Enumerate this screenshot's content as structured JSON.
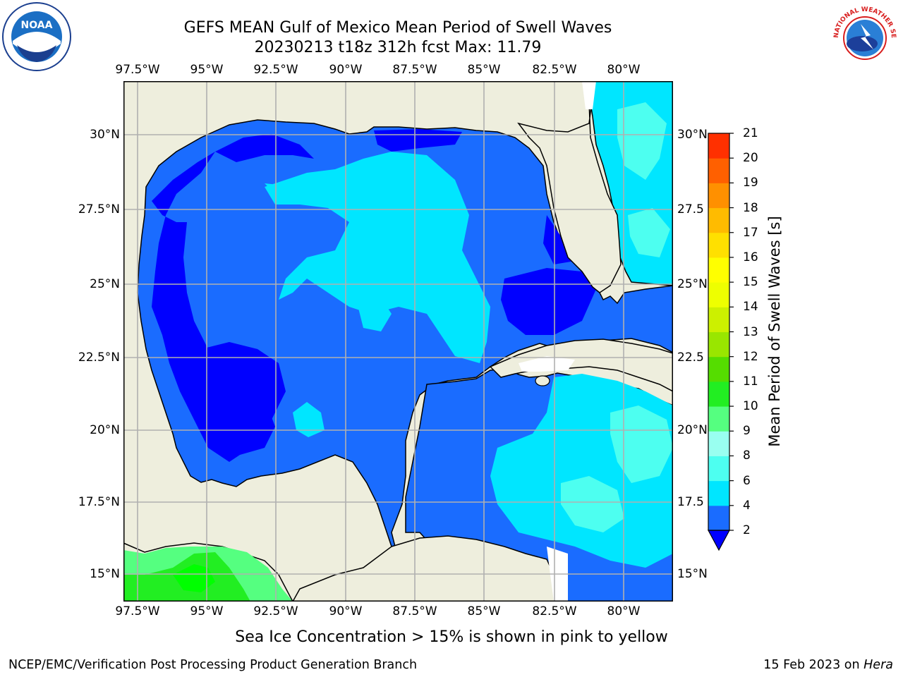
{
  "title": {
    "line1": "GEFS MEAN Gulf of Mexico Mean Period of Swell Waves",
    "line2": "20230213 t18z 312h fcst   Max: 11.79"
  },
  "logos": {
    "left": {
      "name": "noaa-logo",
      "text": "NOAA"
    },
    "right": {
      "name": "national-weather-service-logo",
      "text": "NATIONAL WEATHER SERVICE"
    }
  },
  "axes": {
    "lon_labels": [
      "97.5°W",
      "95°W",
      "92.5°W",
      "90°W",
      "87.5°W",
      "85°W",
      "82.5°W",
      "80°W"
    ],
    "lat_labels_left": [
      "30°N",
      "27.5°N",
      "25°N",
      "22.5°N",
      "20°N",
      "17.5°N",
      "15°N"
    ],
    "lat_labels_right": [
      "30°N",
      "27.5",
      "25°N",
      "22.5",
      "20°N",
      "17.5",
      "15°N"
    ]
  },
  "colorbar": {
    "title": "Mean Period of Swell Waves [s]",
    "ticks": [
      "2",
      "4",
      "6",
      "8",
      "9",
      "10",
      "11",
      "12",
      "13",
      "14",
      "15",
      "16",
      "17",
      "18",
      "19",
      "20",
      "21"
    ],
    "colors": [
      "#1a6cff",
      "#00e6ff",
      "#4dfff0",
      "#99fff0",
      "#55ff80",
      "#22ee22",
      "#55dd00",
      "#99e600",
      "#ccf000",
      "#eeff00",
      "#ffff00",
      "#ffe000",
      "#ffbb00",
      "#ff9000",
      "#ff6000",
      "#ff3000"
    ],
    "extend_color": "#0000ff"
  },
  "colors": {
    "land": "#eeeedd",
    "deep_blue": "#0000ff",
    "mid_blue": "#1a6cff",
    "cyan": "#00e6ff",
    "light_cyan": "#4dfff0",
    "green": "#22ee22",
    "bright_green": "#00ff00",
    "grid": "#b0b0b0"
  },
  "footer": {
    "note": "Sea Ice Concentration > 15% is shown in pink to yellow",
    "left": "NCEP/EMC/Verification Post Processing Product Generation Branch",
    "date": "15 Feb 2023 on ",
    "machine": "Hera"
  }
}
